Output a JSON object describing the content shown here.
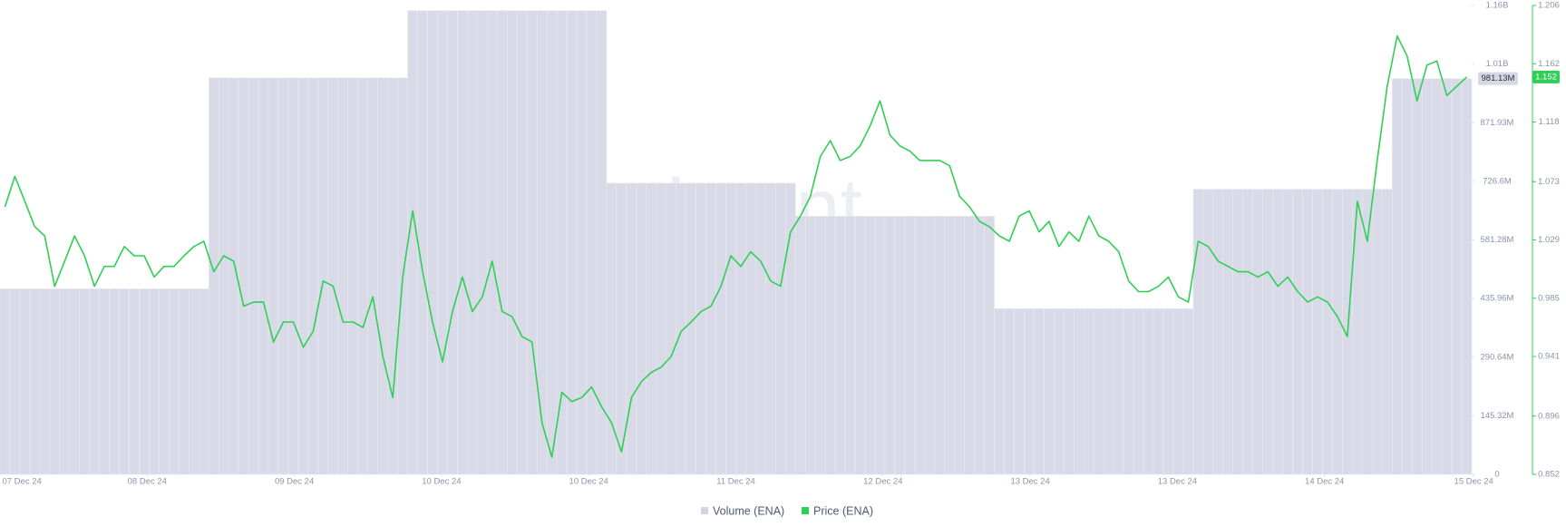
{
  "chart_data": {
    "type": "volume-price",
    "watermark": "santiment",
    "xticks": [
      {
        "value": 2.2,
        "label": "07 Dec 24"
      },
      {
        "value": 14.8,
        "label": "08 Dec 24"
      },
      {
        "value": 29.6,
        "label": "09 Dec 24"
      },
      {
        "value": 44.4,
        "label": "10 Dec 24"
      },
      {
        "value": 59.2,
        "label": "10 Dec 24"
      },
      {
        "value": 74,
        "label": "11 Dec 24"
      },
      {
        "value": 88.8,
        "label": "12 Dec 24"
      },
      {
        "value": 103.6,
        "label": "13 Dec 24"
      },
      {
        "value": 118.4,
        "label": "13 Dec 24"
      },
      {
        "value": 133.2,
        "label": "14 Dec 24"
      },
      {
        "value": 148.2,
        "label": "15 Dec 24"
      }
    ],
    "ylim": [
      0,
      1162570000
    ],
    "yticks": [
      0,
      {
        "value": 145320000,
        "label": "145.32M"
      },
      {
        "value": 290640000,
        "label": "290.64M"
      },
      {
        "value": 435960000,
        "label": "435.96M"
      },
      {
        "value": 581280000,
        "label": "581.28M"
      },
      {
        "value": 726600000,
        "label": "726.6M"
      },
      {
        "value": 871930000,
        "label": "871.93M"
      },
      {
        "value": 1017250000,
        "label": "1.01B"
      },
      {
        "value": 1162570000,
        "label": "1.16B"
      }
    ],
    "y2lim": [
      0.852,
      1.206
    ],
    "y2ticks": [
      0.852,
      0.896,
      0.941,
      0.985,
      1.029,
      1.073,
      1.118,
      1.162,
      1.206
    ],
    "series": [
      {
        "name": "Volume (ENA)",
        "type": "bar",
        "color": "#d8dae8",
        "legend_color": "#d2d4e3",
        "last_value_label": "981.13M",
        "values": [
          460000000,
          460000000,
          460000000,
          460000000,
          460000000,
          460000000,
          460000000,
          460000000,
          460000000,
          460000000,
          460000000,
          460000000,
          460000000,
          460000000,
          460000000,
          460000000,
          460000000,
          460000000,
          460000000,
          460000000,
          460000000,
          983000000,
          983000000,
          983000000,
          983000000,
          983000000,
          983000000,
          983000000,
          983000000,
          983000000,
          983000000,
          983000000,
          983000000,
          983000000,
          983000000,
          983000000,
          983000000,
          983000000,
          983000000,
          983000000,
          983000000,
          1150000000,
          1150000000,
          1150000000,
          1150000000,
          1150000000,
          1150000000,
          1150000000,
          1150000000,
          1150000000,
          1150000000,
          1150000000,
          1150000000,
          1150000000,
          1150000000,
          1150000000,
          1150000000,
          1150000000,
          1150000000,
          1150000000,
          1150000000,
          722000000,
          722000000,
          722000000,
          722000000,
          722000000,
          722000000,
          722000000,
          722000000,
          722000000,
          722000000,
          722000000,
          722000000,
          722000000,
          722000000,
          722000000,
          722000000,
          722000000,
          722000000,
          722000000,
          640000000,
          640000000,
          640000000,
          640000000,
          640000000,
          640000000,
          640000000,
          640000000,
          640000000,
          640000000,
          640000000,
          640000000,
          640000000,
          640000000,
          640000000,
          640000000,
          640000000,
          640000000,
          640000000,
          640000000,
          411000000,
          411000000,
          411000000,
          411000000,
          411000000,
          411000000,
          411000000,
          411000000,
          411000000,
          411000000,
          411000000,
          411000000,
          411000000,
          411000000,
          411000000,
          411000000,
          411000000,
          411000000,
          411000000,
          411000000,
          707000000,
          707000000,
          707000000,
          707000000,
          707000000,
          707000000,
          707000000,
          707000000,
          707000000,
          707000000,
          707000000,
          707000000,
          707000000,
          707000000,
          707000000,
          707000000,
          707000000,
          707000000,
          707000000,
          707000000,
          981130000,
          981130000,
          981130000,
          981130000,
          981130000,
          981130000,
          981130000,
          981130000
        ]
      },
      {
        "name": "Price (ENA)",
        "type": "line",
        "axis": "y2",
        "color": "#2fcf56",
        "last_value_label": "1.152",
        "values": [
          1.054,
          1.077,
          1.058,
          1.039,
          1.032,
          0.994,
          1.013,
          1.032,
          1.017,
          0.994,
          1.009,
          1.009,
          1.024,
          1.017,
          1.017,
          1.001,
          1.009,
          1.009,
          1.017,
          1.024,
          1.028,
          1.005,
          1.017,
          1.013,
          0.979,
          0.982,
          0.982,
          0.952,
          0.967,
          0.967,
          0.948,
          0.96,
          0.998,
          0.994,
          0.967,
          0.967,
          0.963,
          0.986,
          0.941,
          0.91,
          1.001,
          1.051,
          1.005,
          0.967,
          0.937,
          0.975,
          1.001,
          0.975,
          0.986,
          1.013,
          0.975,
          0.971,
          0.956,
          0.952,
          0.891,
          0.865,
          0.914,
          0.907,
          0.91,
          0.918,
          0.903,
          0.891,
          0.869,
          0.91,
          0.922,
          0.929,
          0.933,
          0.941,
          0.96,
          0.967,
          0.975,
          0.979,
          0.994,
          1.017,
          1.009,
          1.02,
          1.013,
          0.998,
          0.994,
          1.035,
          1.047,
          1.062,
          1.092,
          1.104,
          1.089,
          1.092,
          1.1,
          1.115,
          1.134,
          1.108,
          1.1,
          1.096,
          1.089,
          1.089,
          1.089,
          1.085,
          1.062,
          1.054,
          1.043,
          1.039,
          1.032,
          1.028,
          1.047,
          1.051,
          1.035,
          1.043,
          1.024,
          1.035,
          1.028,
          1.047,
          1.032,
          1.028,
          1.02,
          0.998,
          0.99,
          0.99,
          0.994,
          1.001,
          0.986,
          0.982,
          1.028,
          1.024,
          1.013,
          1.009,
          1.005,
          1.005,
          1.001,
          1.005,
          0.994,
          1.001,
          0.99,
          0.982,
          0.986,
          0.982,
          0.971,
          0.956,
          1.058,
          1.028,
          1.089,
          1.145,
          1.183,
          1.168,
          1.134,
          1.161,
          1.164,
          1.138,
          1.145,
          1.152
        ]
      }
    ]
  }
}
